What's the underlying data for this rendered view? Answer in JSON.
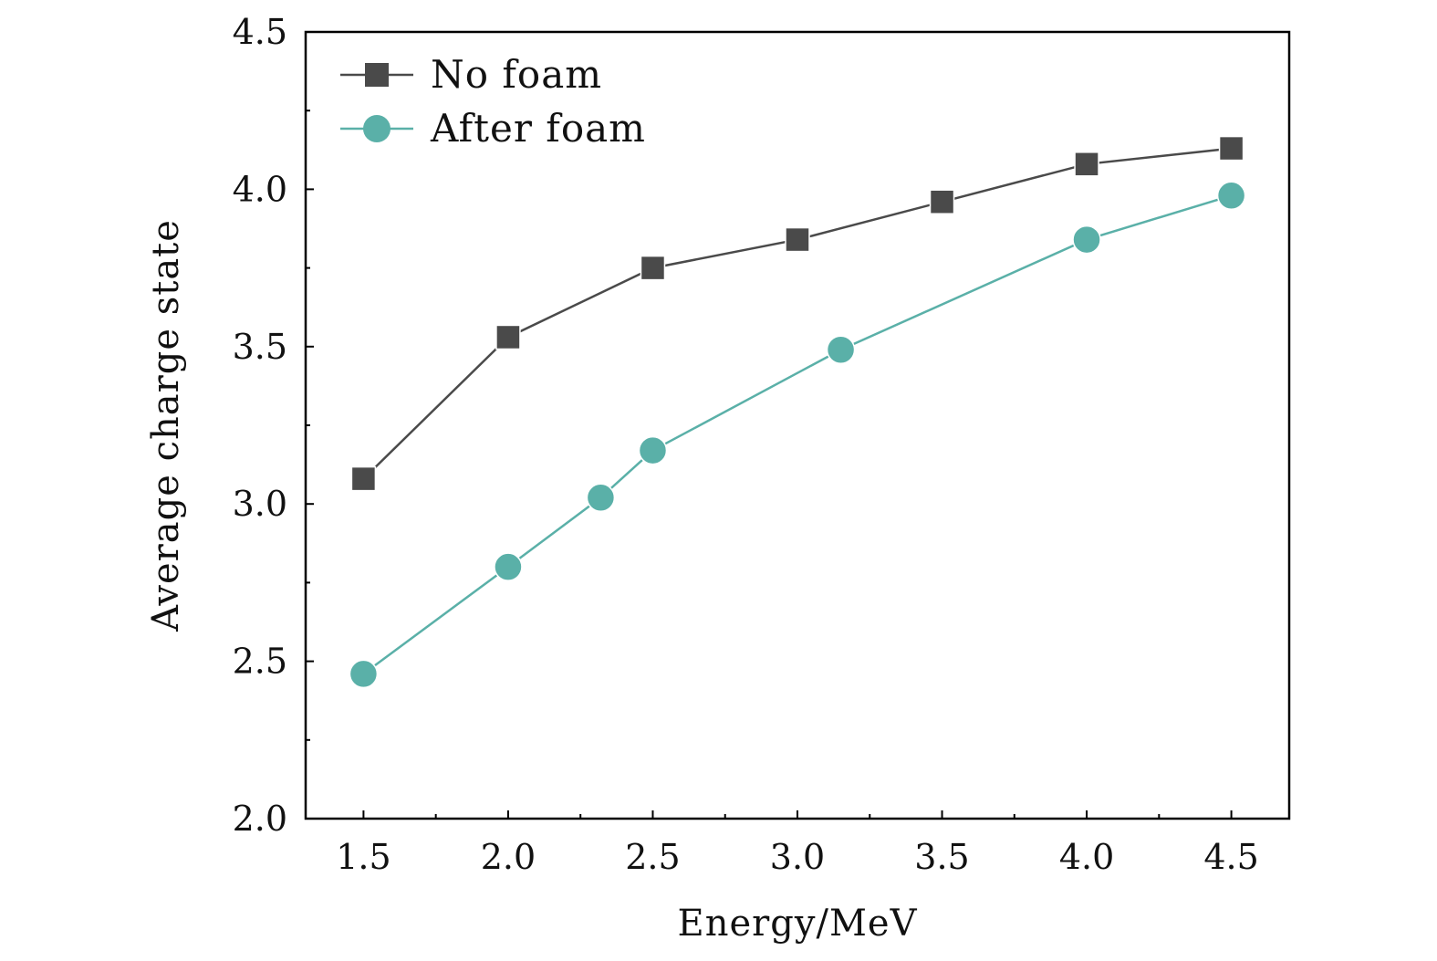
{
  "chart_data": {
    "type": "line",
    "xlabel": "Energy/MeV",
    "ylabel": "Average charge state",
    "xlim": [
      1.3,
      4.7
    ],
    "ylim": [
      2.0,
      4.5
    ],
    "xticks": [
      "1.5",
      "2.0",
      "2.5",
      "3.0",
      "3.5",
      "4.0",
      "4.5"
    ],
    "yticks": [
      "2.0",
      "2.5",
      "3.0",
      "3.5",
      "4.0",
      "4.5"
    ],
    "grid": false,
    "legend_position": "top-left",
    "series": [
      {
        "name": "No foam",
        "marker": "square",
        "color": "#4a4a4a",
        "x": [
          1.5,
          2.0,
          2.5,
          3.0,
          3.5,
          4.0,
          4.5
        ],
        "y": [
          3.08,
          3.53,
          3.75,
          3.84,
          3.96,
          4.08,
          4.13
        ]
      },
      {
        "name": "After foam",
        "marker": "circle",
        "color": "#5ab0a8",
        "x": [
          1.5,
          2.0,
          2.32,
          2.5,
          3.15,
          4.0,
          4.5
        ],
        "y": [
          2.46,
          2.8,
          3.02,
          3.17,
          3.49,
          3.84,
          3.98
        ]
      }
    ]
  }
}
